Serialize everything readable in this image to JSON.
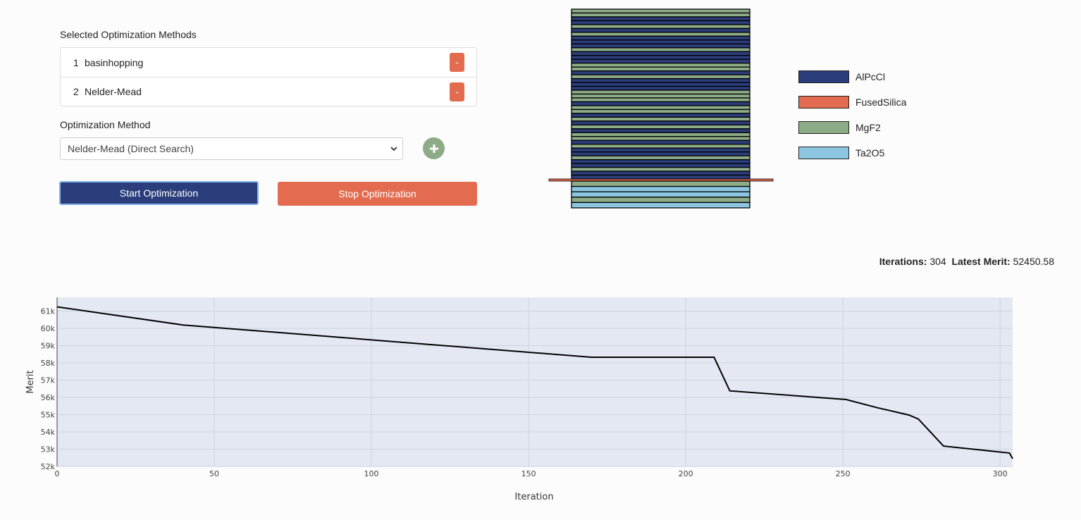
{
  "methods": {
    "title": "Selected Optimization Methods",
    "items": [
      {
        "index": "1",
        "name": "basinhopping",
        "remove_label": "-"
      },
      {
        "index": "2",
        "name": "Nelder-Mead",
        "remove_label": "-"
      }
    ]
  },
  "method_select": {
    "label": "Optimization Method",
    "selected": "Nelder-Mead (Direct Search)",
    "add_label": "+"
  },
  "actions": {
    "start_label": "Start Optimization",
    "stop_label": "Stop Optimization"
  },
  "colors": {
    "primary": "#2b3d7b",
    "danger": "#e36c50",
    "success": "#8cab86",
    "plot_bg": "#e3e8f3"
  },
  "layer_stack": {
    "materials": [
      {
        "name": "AlPcCl",
        "color": "#2b3d7b"
      },
      {
        "name": "FusedSilica",
        "color": "#e36c50"
      },
      {
        "name": "MgF2",
        "color": "#8cab86"
      },
      {
        "name": "Ta2O5",
        "color": "#8cc6e0"
      }
    ],
    "coating_layers": [
      "MgF2",
      "MgF2",
      "AlPcCl",
      "AlPcCl",
      "MgF2",
      "AlPcCl",
      "MgF2",
      "AlPcCl",
      "AlPcCl",
      "AlPcCl",
      "MgF2",
      "AlPcCl",
      "AlPcCl",
      "AlPcCl",
      "MgF2",
      "MgF2",
      "AlPcCl",
      "MgF2",
      "AlPcCl",
      "AlPcCl",
      "AlPcCl",
      "MgF2",
      "MgF2",
      "MgF2",
      "AlPcCl",
      "MgF2",
      "MgF2",
      "AlPcCl",
      "MgF2",
      "AlPcCl",
      "MgF2",
      "AlPcCl",
      "MgF2",
      "MgF2",
      "AlPcCl",
      "MgF2",
      "AlPcCl",
      "AlPcCl",
      "MgF2",
      "AlPcCl",
      "AlPcCl",
      "MgF2",
      "AlPcCl",
      "AlPcCl"
    ],
    "substrate": "FusedSilica",
    "back_layers": [
      "MgF2",
      "Ta2O5",
      "Ta2O5",
      "MgF2",
      "Ta2O5"
    ]
  },
  "status": {
    "iterations_label": "Iterations:",
    "iterations_value": "304",
    "merit_label": "Latest Merit:",
    "merit_value": "52450.58"
  },
  "chart_data": {
    "type": "line",
    "xlabel": "Iteration",
    "ylabel": "Merit",
    "xlim": [
      0,
      304
    ],
    "ylim": [
      52000,
      61800
    ],
    "xticks": [
      0,
      50,
      100,
      150,
      200,
      250,
      300
    ],
    "yticks": [
      52000,
      53000,
      54000,
      55000,
      56000,
      57000,
      58000,
      59000,
      60000,
      61000
    ],
    "ytick_labels": [
      "52k",
      "53k",
      "54k",
      "55k",
      "56k",
      "57k",
      "58k",
      "59k",
      "60k",
      "61k"
    ],
    "grid": true,
    "series": [
      {
        "x": [
          0,
          40,
          170,
          209,
          214,
          251,
          261,
          271,
          274,
          282,
          303,
          304
        ],
        "y": [
          61250,
          60200,
          58330,
          58330,
          56380,
          55880,
          55400,
          54980,
          54750,
          53180,
          52780,
          52450
        ],
        "color": "#000000"
      }
    ]
  }
}
